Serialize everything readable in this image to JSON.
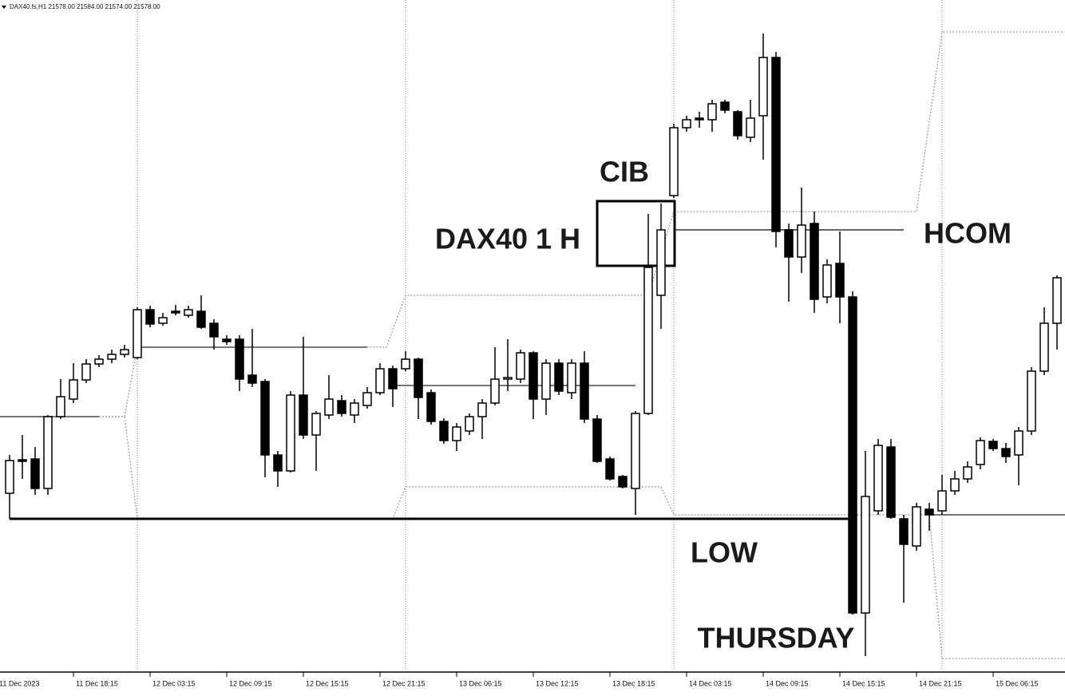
{
  "chart_data": {
    "type": "candlestick",
    "header": "DAX40.fs,H1  21578.00 21584.00 21574.00 21578.00",
    "annotations": [
      "CIB",
      "DAX40 1 H",
      "HCOM",
      "LOW",
      "THURSDAY"
    ],
    "xlim": [
      -0.75,
      82.625
    ],
    "ylim": [
      16160,
      17000
    ],
    "xticks": [
      {
        "value": -1,
        "label": "11 Dec 2023"
      },
      {
        "value": 5,
        "label": "11 Dec 18:15"
      },
      {
        "value": 11,
        "label": "12 Dec 03:15"
      },
      {
        "value": 17,
        "label": "12 Dec 09:15"
      },
      {
        "value": 23,
        "label": "12 Dec 15:15"
      },
      {
        "value": 29,
        "label": "12 Dec 21:15"
      },
      {
        "value": 35,
        "label": "13 Dec 06:15"
      },
      {
        "value": 41,
        "label": "13 Dec 12:15"
      },
      {
        "value": 47,
        "label": "13 Dec 18:15"
      },
      {
        "value": 53,
        "label": "14 Dec 03:15"
      },
      {
        "value": 59,
        "label": "14 Dec 09:15"
      },
      {
        "value": 65,
        "label": "14 Dec 15:15"
      },
      {
        "value": 71,
        "label": "14 Dec 21:15"
      },
      {
        "value": 77,
        "label": "15 Dec 06:15"
      }
    ],
    "up_color": "#ffffff",
    "down_color": "#000000",
    "open": [
      16382,
      16424,
      16425,
      16388,
      16478,
      16500,
      16524,
      16544,
      16550,
      16556,
      16552,
      16612,
      16595,
      16610,
      16605,
      16610,
      16595,
      16575,
      16575,
      16530,
      16522,
      16430,
      16410,
      16505,
      16455,
      16480,
      16498,
      16480,
      16492,
      16508,
      16538,
      16538,
      16550,
      16508,
      16472,
      16448,
      16460,
      16478,
      16495,
      16525,
      16525,
      16558,
      16500,
      16545,
      16508,
      16545,
      16475,
      16425,
      16403,
      16388,
      16482,
      16630,
      16755,
      16840,
      16852,
      16850,
      16872,
      16860,
      16828,
      16855,
      16928,
      16712,
      16678,
      16720,
      16628,
      16670,
      16628,
      16232,
      16360,
      16440,
      16350,
      16316,
      16362,
      16360,
      16385,
      16400,
      16418,
      16447,
      16438,
      16430,
      16460,
      16535,
      16595
    ],
    "high": [
      16430,
      16455,
      16440,
      16480,
      16525,
      16545,
      16550,
      16555,
      16562,
      16568,
      16615,
      16617,
      16608,
      16618,
      16617,
      16630,
      16600,
      16580,
      16580,
      16588,
      16525,
      16435,
      16510,
      16578,
      16485,
      16530,
      16505,
      16500,
      16515,
      16545,
      16542,
      16560,
      16552,
      16512,
      16476,
      16470,
      16482,
      16500,
      16565,
      16575,
      16562,
      16560,
      16550,
      16550,
      16550,
      16560,
      16480,
      16428,
      16405,
      16485,
      16732,
      16745,
      16845,
      16855,
      16860,
      16875,
      16875,
      16862,
      16875,
      16958,
      16935,
      16720,
      16765,
      16735,
      16675,
      16710,
      16635,
      16435,
      16450,
      16450,
      16355,
      16370,
      16370,
      16405,
      16410,
      16422,
      16452,
      16450,
      16445,
      16465,
      16540,
      16615,
      16655
    ],
    "low": [
      16350,
      16400,
      16380,
      16380,
      16475,
      16495,
      16520,
      16540,
      16545,
      16552,
      16550,
      16590,
      16592,
      16605,
      16602,
      16588,
      16562,
      16568,
      16510,
      16515,
      16402,
      16390,
      16408,
      16450,
      16410,
      16475,
      16478,
      16470,
      16488,
      16505,
      16490,
      16535,
      16475,
      16468,
      16444,
      16435,
      16455,
      16450,
      16492,
      16510,
      16520,
      16475,
      16480,
      16505,
      16500,
      16470,
      16420,
      16398,
      16388,
      16355,
      16480,
      16588,
      16752,
      16835,
      16840,
      16835,
      16858,
      16825,
      16822,
      16800,
      16690,
      16622,
      16658,
      16608,
      16620,
      16595,
      16230,
      16178,
      16355,
      16350,
      16245,
      16310,
      16335,
      16355,
      16380,
      16395,
      16412,
      16435,
      16420,
      16392,
      16455,
      16530,
      16562
    ],
    "close": [
      16423,
      16422,
      16388,
      16478,
      16503,
      16524,
      16544,
      16550,
      16556,
      16562,
      16612,
      16594,
      16602,
      16608,
      16612,
      16590,
      16578,
      16572,
      16525,
      16520,
      16430,
      16410,
      16505,
      16455,
      16482,
      16500,
      16482,
      16495,
      16508,
      16538,
      16513,
      16550,
      16502,
      16472,
      16448,
      16465,
      16478,
      16495,
      16525,
      16527,
      16558,
      16500,
      16545,
      16510,
      16545,
      16475,
      16422,
      16400,
      16390,
      16482,
      16665,
      16712,
      16840,
      16850,
      16850,
      16870,
      16862,
      16830,
      16852,
      16928,
      16710,
      16678,
      16718,
      16625,
      16668,
      16628,
      16232,
      16378,
      16442,
      16352,
      16318,
      16365,
      16355,
      16385,
      16400,
      16415,
      16448,
      16438,
      16428,
      16460,
      16535,
      16595,
      16652
    ],
    "separators": [
      10,
      31,
      52,
      73
    ],
    "levels": [
      {
        "x": [
          -0.75,
          7
        ],
        "value": 16478,
        "color": "#777777"
      },
      {
        "x": [
          10,
          28
        ],
        "value": 16565,
        "color": "#777777"
      },
      {
        "x": [
          30,
          49
        ],
        "value": 16517,
        "color": "#777777"
      },
      {
        "x": [
          52,
          70
        ],
        "value": 16712,
        "color": "#666666"
      },
      {
        "x": [
          72,
          82.625
        ],
        "value": 16355,
        "color": "#777777"
      },
      {
        "x": [
          0,
          66
        ],
        "value": 16350,
        "color": "#000000"
      }
    ],
    "bands": [
      {
        "x": [
          -0.75,
          9,
          10,
          29.5,
          31,
          50,
          52,
          71,
          73,
          82.625
        ],
        "values": [
          16478,
          16478,
          16565,
          16565,
          16630,
          16630,
          16735,
          16735,
          16960,
          16960
        ],
        "color": "#aaaaaa"
      },
      {
        "x": [
          -0.75,
          9,
          10,
          30,
          31,
          51,
          52,
          72,
          73,
          82.625
        ],
        "values": [
          16478,
          16478,
          16350,
          16350,
          16390,
          16390,
          16355,
          16355,
          16175,
          16175
        ],
        "color": "#aaaaaa"
      }
    ]
  }
}
